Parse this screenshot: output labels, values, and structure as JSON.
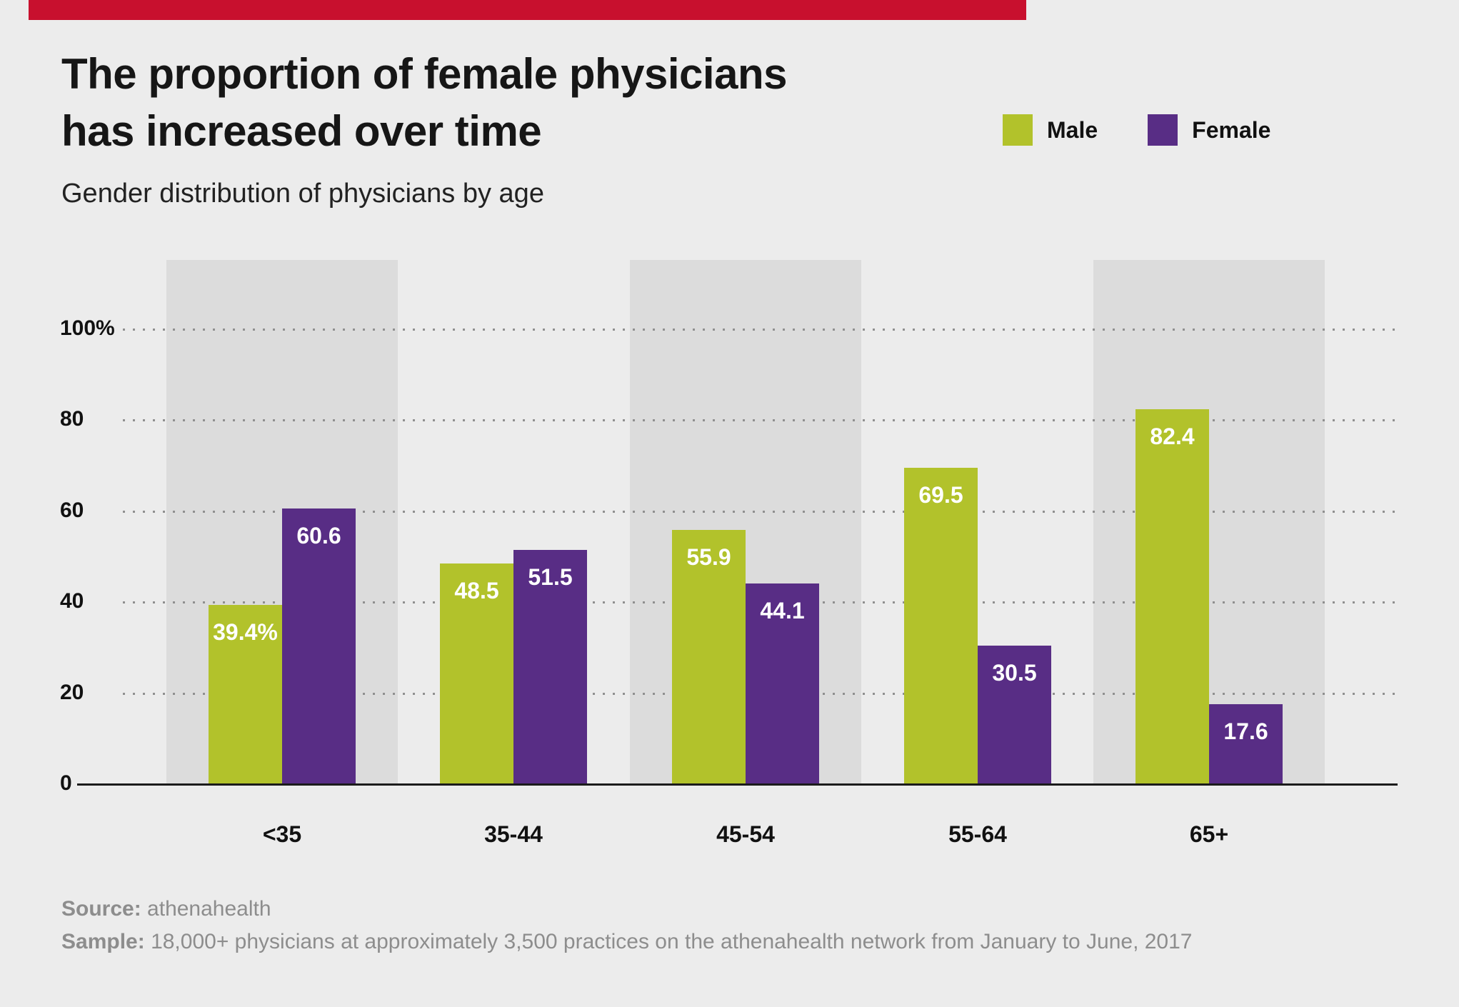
{
  "page": {
    "background_color": "#ececec",
    "accent_bar_color": "#c8102e",
    "band_color": "#dcdcdc"
  },
  "header": {
    "title_line1": "The proportion of female physicians",
    "title_line2": "has increased over time",
    "subtitle": "Gender distribution of physicians by age"
  },
  "legend": {
    "items": [
      {
        "label": "Male",
        "color": "#b2c22b"
      },
      {
        "label": "Female",
        "color": "#582d85"
      }
    ]
  },
  "chart_data": {
    "type": "bar",
    "title": "The proportion of female physicians has increased over time",
    "subtitle": "Gender distribution of physicians by age",
    "categories": [
      "<35",
      "35-44",
      "45-54",
      "55-64",
      "65+"
    ],
    "series": [
      {
        "name": "Male",
        "color": "#b2c22b",
        "values": [
          39.4,
          48.5,
          55.9,
          69.5,
          82.4
        ],
        "labels": [
          "39.4%",
          "48.5",
          "55.9",
          "69.5",
          "82.4"
        ]
      },
      {
        "name": "Female",
        "color": "#582d85",
        "values": [
          60.6,
          51.5,
          44.1,
          30.5,
          17.6
        ],
        "labels": [
          "60.6",
          "51.5",
          "44.1",
          "30.5",
          "17.6"
        ]
      }
    ],
    "xlabel": "",
    "ylabel": "",
    "ylim": [
      0,
      100
    ],
    "yticks": [
      {
        "value": 100,
        "label": "100%"
      },
      {
        "value": 80,
        "label": "80"
      },
      {
        "value": 60,
        "label": "60"
      },
      {
        "value": 40,
        "label": "40"
      },
      {
        "value": 20,
        "label": "20"
      },
      {
        "value": 0,
        "label": "0"
      }
    ],
    "grid": "horizontal-dotted",
    "legend_position": "top-right",
    "background_band_groups": [
      0,
      2,
      4
    ]
  },
  "footer": {
    "source_label": "Source:",
    "source_value": "athenahealth",
    "sample_label": "Sample:",
    "sample_value": "18,000+ physicians at approximately 3,500 practices on the athenahealth network from January to June, 2017"
  }
}
